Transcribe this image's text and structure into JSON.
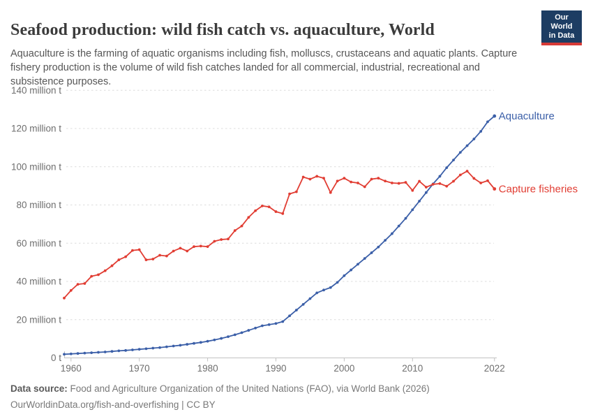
{
  "header": {
    "title": "Seafood production: wild fish catch vs. aquaculture, World",
    "subtitle": "Aquaculture is the farming of aquatic organisms including fish, molluscs, crustaceans and aquatic plants. Capture fishery production is the volume of wild fish catches landed for all commercial, industrial, recreational and subsistence purposes."
  },
  "logo": {
    "line1": "Our World",
    "line2": "in Data",
    "bg_color": "#1d3d63",
    "bar_color": "#d73a36"
  },
  "footer": {
    "source_label": "Data source:",
    "source_text": "Food and Agriculture Organization of the United Nations (FAO), via World Bank (2026)",
    "note_text": "OurWorldinData.org/fish-and-overfishing | CC BY"
  },
  "chart_data": {
    "type": "line",
    "title": "Seafood production: wild fish catch vs. aquaculture, World",
    "unit": "million tonnes",
    "x": [
      1959,
      1960,
      1961,
      1962,
      1963,
      1964,
      1965,
      1966,
      1967,
      1968,
      1969,
      1970,
      1971,
      1972,
      1973,
      1974,
      1975,
      1976,
      1977,
      1978,
      1979,
      1980,
      1981,
      1982,
      1983,
      1984,
      1985,
      1986,
      1987,
      1988,
      1989,
      1990,
      1991,
      1992,
      1993,
      1994,
      1995,
      1996,
      1997,
      1998,
      1999,
      2000,
      2001,
      2002,
      2003,
      2004,
      2005,
      2006,
      2007,
      2008,
      2009,
      2010,
      2011,
      2012,
      2013,
      2014,
      2015,
      2016,
      2017,
      2018,
      2019,
      2020,
      2021,
      2022
    ],
    "series": [
      {
        "name": "Aquaculture",
        "color": "#3b5fa8",
        "values": [
          1.9,
          2.1,
          2.3,
          2.5,
          2.7,
          2.9,
          3.1,
          3.4,
          3.7,
          3.9,
          4.2,
          4.5,
          4.8,
          5.1,
          5.4,
          5.8,
          6.2,
          6.6,
          7.1,
          7.6,
          8.1,
          8.7,
          9.4,
          10.2,
          11.1,
          12.1,
          13.2,
          14.4,
          15.6,
          16.8,
          17.4,
          18.0,
          19.0,
          22.0,
          25.0,
          28.0,
          31.0,
          34.0,
          35.5,
          36.8,
          39.5,
          43.0,
          46.0,
          49.0,
          52.0,
          55.0,
          58.0,
          61.5,
          65.0,
          69.0,
          73.0,
          77.5,
          82.0,
          86.5,
          91.0,
          95.0,
          99.5,
          103.5,
          107.5,
          111.0,
          114.5,
          118.5,
          123.5,
          126.5
        ]
      },
      {
        "name": "Capture fisheries",
        "color": "#e13d33",
        "values": [
          31.3,
          35.3,
          38.5,
          38.9,
          42.7,
          43.5,
          45.6,
          48.2,
          51.3,
          52.9,
          56.2,
          56.6,
          51.3,
          51.7,
          53.7,
          53.3,
          55.9,
          57.4,
          55.9,
          58.2,
          58.5,
          58.2,
          61.0,
          61.9,
          62.2,
          66.6,
          69.0,
          73.5,
          77.0,
          79.5,
          79.0,
          76.5,
          75.5,
          85.8,
          86.9,
          94.6,
          93.5,
          95.0,
          94.0,
          86.5,
          92.5,
          94.0,
          92.0,
          91.5,
          89.5,
          93.5,
          94.0,
          92.5,
          91.5,
          91.3,
          91.8,
          87.6,
          92.4,
          89.3,
          90.8,
          91.2,
          89.8,
          92.4,
          95.7,
          97.7,
          93.9,
          91.5,
          92.7,
          88.4
        ]
      }
    ],
    "x_ticks": [
      1960,
      1970,
      1980,
      1990,
      2000,
      2010,
      2022
    ],
    "y_ticks": [
      0,
      20,
      40,
      60,
      80,
      100,
      120,
      140
    ],
    "y_tick_labels": [
      "0 t",
      "20 million t",
      "40 million t",
      "60 million t",
      "80 million t",
      "100 million t",
      "120 million t",
      "140 million t"
    ],
    "ylim": [
      0,
      140
    ],
    "xlim": [
      1959,
      2022
    ],
    "grid": "dashed-horizontal",
    "legend_position": "end-of-line"
  }
}
